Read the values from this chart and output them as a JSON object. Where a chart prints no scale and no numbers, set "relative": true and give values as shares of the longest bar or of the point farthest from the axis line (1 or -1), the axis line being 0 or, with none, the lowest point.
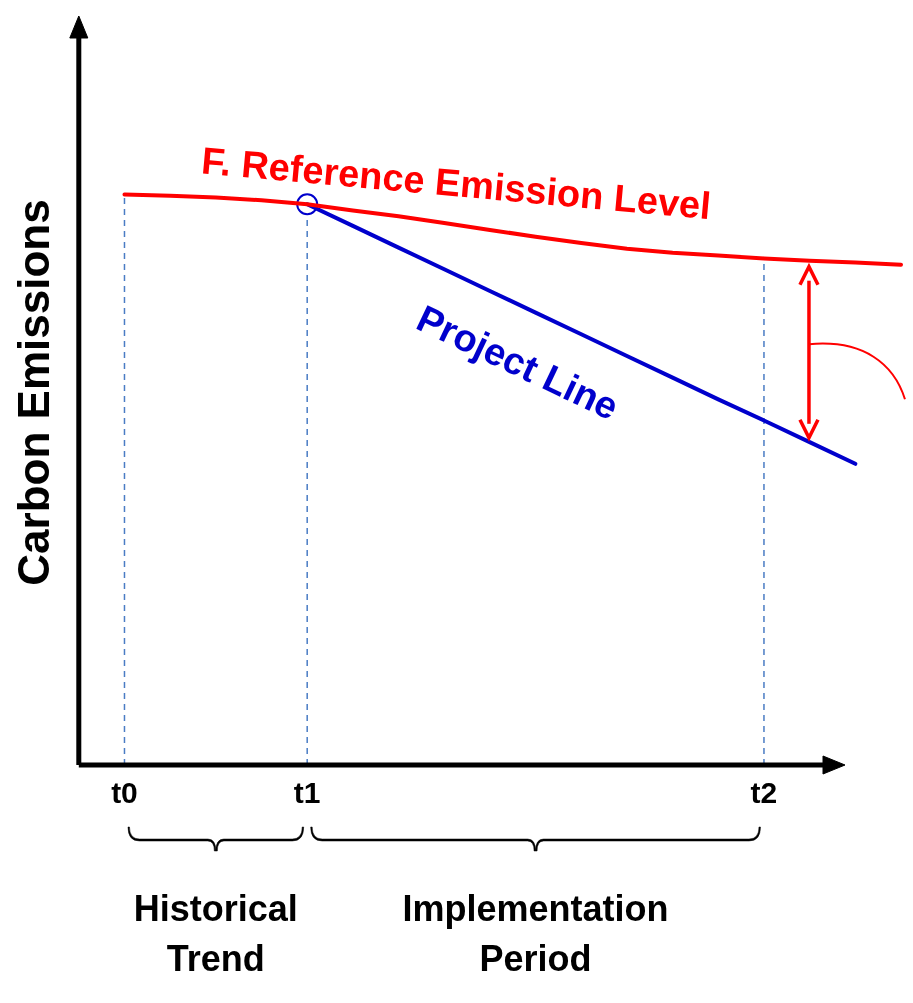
{
  "chart_data": {
    "type": "line",
    "relative": true,
    "ylabel": "Carbon Emissions",
    "categories": [
      null,
      "t0",
      null,
      null,
      null,
      "t1",
      null,
      null,
      null,
      null,
      null,
      null,
      null,
      null,
      null,
      "t2",
      null,
      null,
      null
    ],
    "tick_labels": "x",
    "grid": false,
    "legend": false,
    "series": [
      {
        "name": "F. Reference Emission Level",
        "color": "#ff0000",
        "values": [
          null,
          1.0,
          0.998,
          0.995,
          0.99,
          0.983,
          0.972,
          0.962,
          0.95,
          0.938,
          0.926,
          0.915,
          0.905,
          0.898,
          0.893,
          0.888,
          0.884,
          0.881,
          0.877
        ]
      },
      {
        "name": "Project Line",
        "color": "#0000cc",
        "values": [
          null,
          null,
          null,
          null,
          null,
          0.983,
          0.945,
          0.907,
          0.869,
          0.831,
          0.793,
          0.755,
          0.717,
          0.679,
          0.641,
          0.604,
          0.566,
          0.528,
          null
        ]
      },
      {
        "type": "scatter",
        "color": "#0000cc",
        "x": [
          "t1"
        ],
        "values": [
          0.983
        ]
      }
    ],
    "ref_lines": [
      {
        "axis": "x",
        "value": "t0",
        "color": "#4a7cc4",
        "line_style": "dashed"
      },
      {
        "axis": "x",
        "value": "t1",
        "color": "#4a7cc4",
        "line_style": "dashed"
      },
      {
        "axis": "x",
        "value": "t2",
        "color": "#4a7cc4",
        "line_style": "dashed"
      }
    ],
    "annotations": [
      "Historical Trend",
      "Implementation Period"
    ]
  }
}
